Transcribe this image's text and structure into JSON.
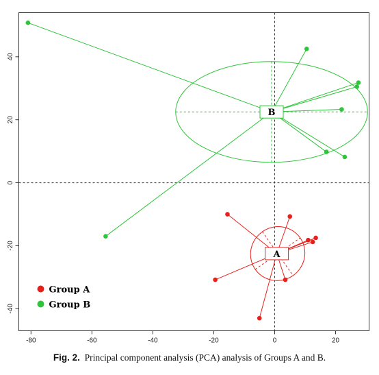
{
  "caption": {
    "label": "Fig. 2.",
    "text": "Principal component analysis (PCA) analysis of Groups A and B."
  },
  "chart_data": {
    "type": "scatter",
    "title": "",
    "xlabel": "",
    "ylabel": "",
    "xlim": [
      -84,
      31
    ],
    "ylim": [
      -47,
      54
    ],
    "xticks": [
      -80,
      -60,
      -40,
      -20,
      0,
      20
    ],
    "yticks": [
      -40,
      -20,
      0,
      20,
      40
    ],
    "reference_lines": {
      "x": 0,
      "y": 0,
      "style": "dashed"
    },
    "legend": {
      "position": "bottom-left",
      "entries": [
        "Group A",
        "Group B"
      ]
    },
    "series": [
      {
        "name": "Group A",
        "color": "#e8201c",
        "centroid_label": "A",
        "centroid": [
          0.7,
          -22.5
        ],
        "ellipse": {
          "center": [
            1,
            -22.5
          ],
          "rx": 9,
          "ry": 8.5,
          "angle_deg": -35
        },
        "points": [
          [
            -15.5,
            -10
          ],
          [
            5,
            -10.7
          ],
          [
            11,
            -18.2
          ],
          [
            12.5,
            -18.8
          ],
          [
            13.5,
            -17.5
          ],
          [
            -19.5,
            -30.8
          ],
          [
            3.5,
            -30.8
          ],
          [
            -5,
            -43
          ]
        ]
      },
      {
        "name": "Group B",
        "color": "#2fc43b",
        "centroid_label": "B",
        "centroid": [
          -1,
          22.5
        ],
        "ellipse": {
          "center": [
            -1,
            22.5
          ],
          "rx": 31.5,
          "ry": 16,
          "angle_deg": 0
        },
        "points": [
          [
            -81,
            50.8
          ],
          [
            10.5,
            42.5
          ],
          [
            27.5,
            31.8
          ],
          [
            27,
            30.5
          ],
          [
            22,
            23.3
          ],
          [
            17,
            9.8
          ],
          [
            23,
            8.2
          ],
          [
            -55.5,
            -17
          ]
        ]
      }
    ]
  }
}
